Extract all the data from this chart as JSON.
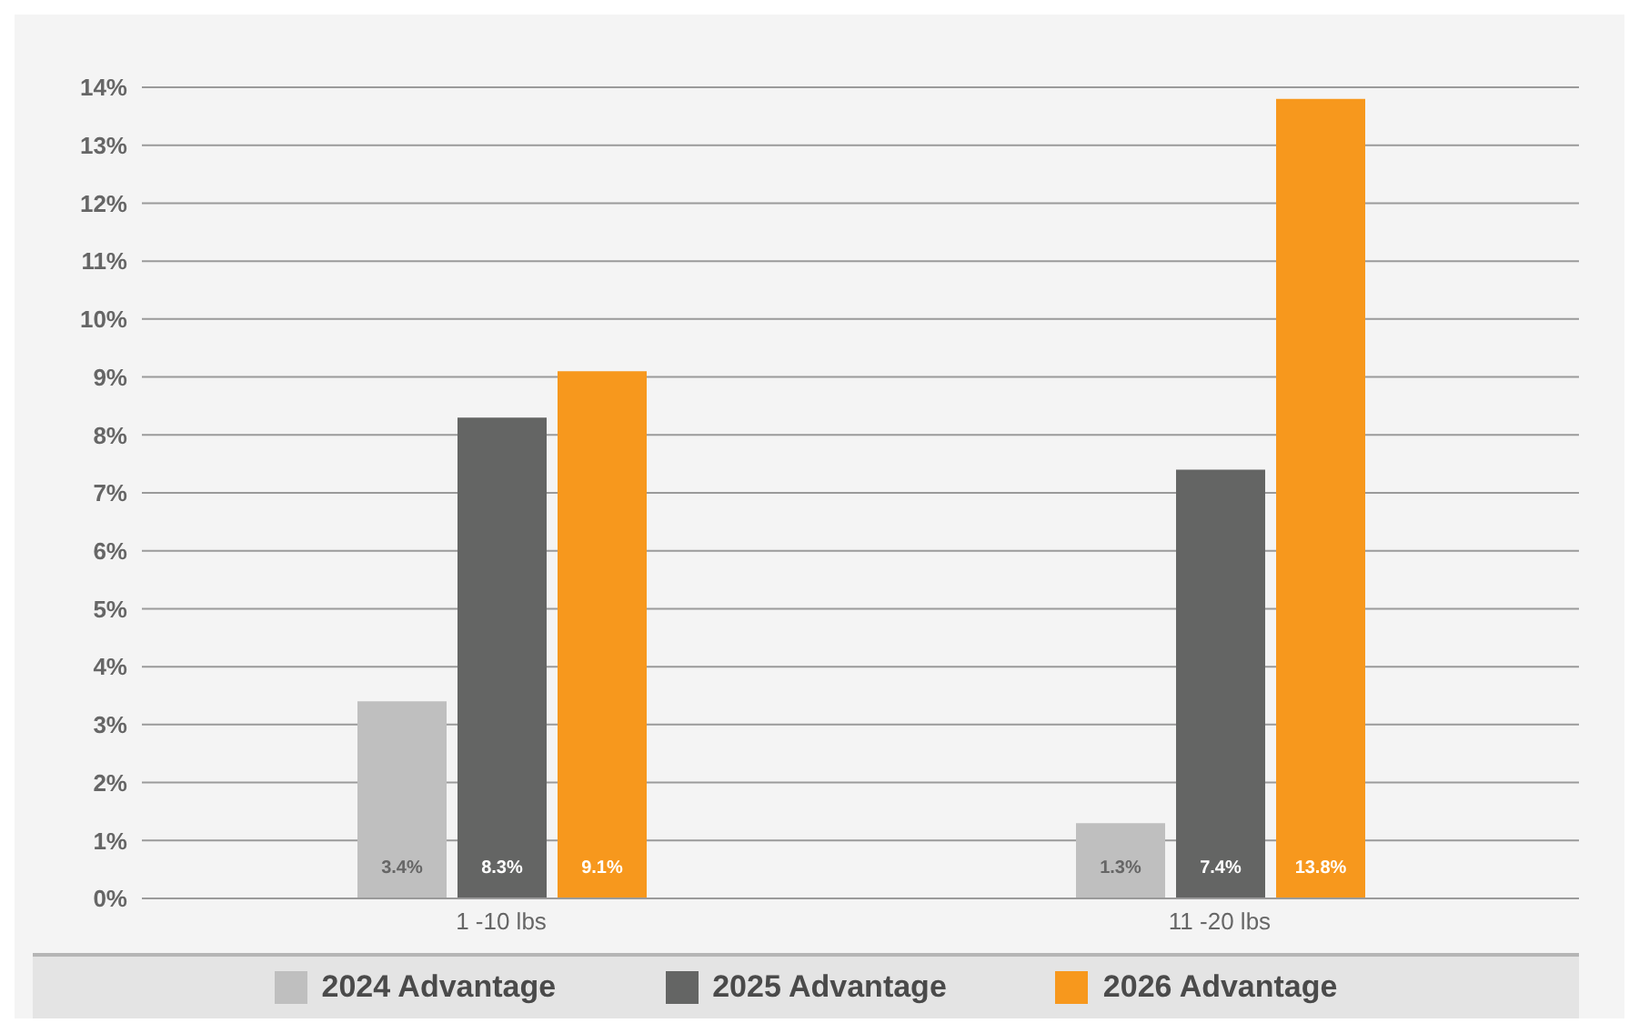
{
  "chart_data": {
    "type": "bar",
    "categories": [
      "1 -10 lbs",
      "11 -20 lbs"
    ],
    "series": [
      {
        "name": "2024 Advantage",
        "color": "#bfbfbf",
        "values": [
          3.4,
          1.3
        ],
        "value_labels": [
          "3.4%",
          "1.3%"
        ]
      },
      {
        "name": "2025 Advantage",
        "color": "#646564",
        "values": [
          8.3,
          7.4
        ],
        "value_labels": [
          "8.3%",
          "7.4%"
        ]
      },
      {
        "name": "2026 Advantage",
        "color": "#f7981d",
        "values": [
          9.1,
          13.8
        ],
        "value_labels": [
          "9.1%",
          "13.8%"
        ]
      }
    ],
    "ylim": [
      0,
      14
    ],
    "yticks": [
      {
        "value": 0,
        "label": "0%"
      },
      {
        "value": 1,
        "label": "1%"
      },
      {
        "value": 2,
        "label": "2%"
      },
      {
        "value": 3,
        "label": "3%"
      },
      {
        "value": 4,
        "label": "4%"
      },
      {
        "value": 5,
        "label": "5%"
      },
      {
        "value": 6,
        "label": "6%"
      },
      {
        "value": 7,
        "label": "7%"
      },
      {
        "value": 8,
        "label": "8%"
      },
      {
        "value": 9,
        "label": "9%"
      },
      {
        "value": 10,
        "label": "10%"
      },
      {
        "value": 11,
        "label": "11%"
      },
      {
        "value": 12,
        "label": "12%"
      },
      {
        "value": 13,
        "label": "13%"
      },
      {
        "value": 14,
        "label": "14%"
      }
    ],
    "grid": "y",
    "legend": "bottom"
  }
}
